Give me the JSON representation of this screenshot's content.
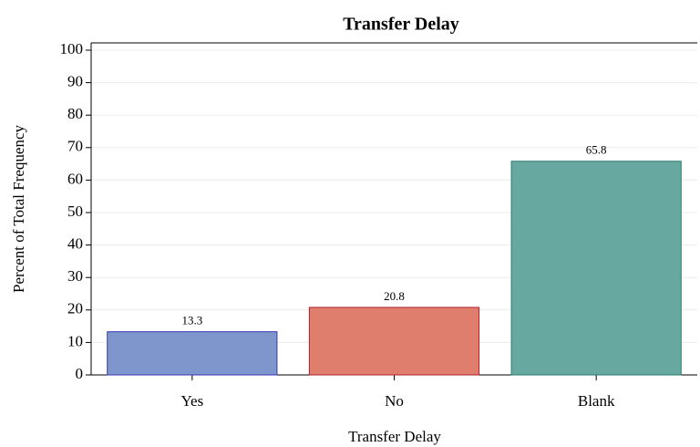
{
  "chart_data": {
    "type": "bar",
    "title": "Transfer Delay",
    "x_label": "Transfer Delay",
    "y_label": "Percent of Total Frequency",
    "categories": [
      "Yes",
      "No",
      "Blank"
    ],
    "values": [
      13.3,
      20.8,
      65.8
    ],
    "colors": [
      "#7f96cc",
      "#e07e6e",
      "#67a8a1"
    ],
    "edge_colors": [
      "#3636b0",
      "#b02030",
      "#2a7a70"
    ],
    "ylim": [
      0,
      100
    ],
    "yticks": [
      0,
      10,
      20,
      30,
      40,
      50,
      60,
      70,
      80,
      90,
      100
    ],
    "grid": true
  }
}
